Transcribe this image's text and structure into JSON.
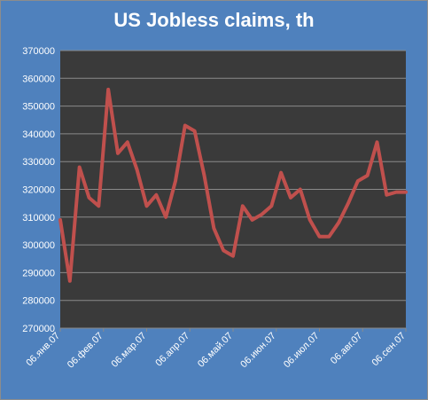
{
  "chart_data": {
    "type": "line",
    "title": "US Jobless claims, th",
    "xlabel": "",
    "ylabel": "",
    "ylim": [
      270000,
      370000
    ],
    "y_ticks": [
      270000,
      280000,
      290000,
      300000,
      310000,
      320000,
      330000,
      340000,
      350000,
      360000,
      370000
    ],
    "x_tick_labels": [
      "06.янв.07",
      "06.фев.07",
      "06.мар.07",
      "06.апр.07",
      "06.май.07",
      "06.июн.07",
      "06.июл.07",
      "06.авг.07",
      "06.сен.07"
    ],
    "grid": true,
    "plot_background": "#3a3a3a",
    "chart_background": "#4f81bd",
    "line_color": "#c0504d",
    "series": [
      {
        "x": [
          "2007-01-06",
          "2007-01-13",
          "2007-01-20",
          "2007-01-27",
          "2007-02-03",
          "2007-02-10",
          "2007-02-17",
          "2007-02-24",
          "2007-03-03",
          "2007-03-10",
          "2007-03-17",
          "2007-03-24",
          "2007-03-31",
          "2007-04-07",
          "2007-04-14",
          "2007-04-21",
          "2007-04-28",
          "2007-05-05",
          "2007-05-12",
          "2007-05-19",
          "2007-05-26",
          "2007-06-02",
          "2007-06-09",
          "2007-06-16",
          "2007-06-23",
          "2007-06-30",
          "2007-07-07",
          "2007-07-14",
          "2007-07-21",
          "2007-07-28",
          "2007-08-04",
          "2007-08-11",
          "2007-08-18",
          "2007-08-25",
          "2007-09-01",
          "2007-09-08",
          "2007-09-15"
        ],
        "values": [
          309000,
          287000,
          328000,
          317000,
          314000,
          356000,
          333000,
          337000,
          327000,
          314000,
          318000,
          310000,
          323000,
          343000,
          341000,
          325000,
          306000,
          298000,
          296000,
          314000,
          309000,
          311000,
          314000,
          326000,
          317000,
          320000,
          309000,
          303000,
          303000,
          308000,
          315000,
          323000,
          325000,
          337000,
          318000,
          319000,
          319000
        ]
      }
    ]
  }
}
